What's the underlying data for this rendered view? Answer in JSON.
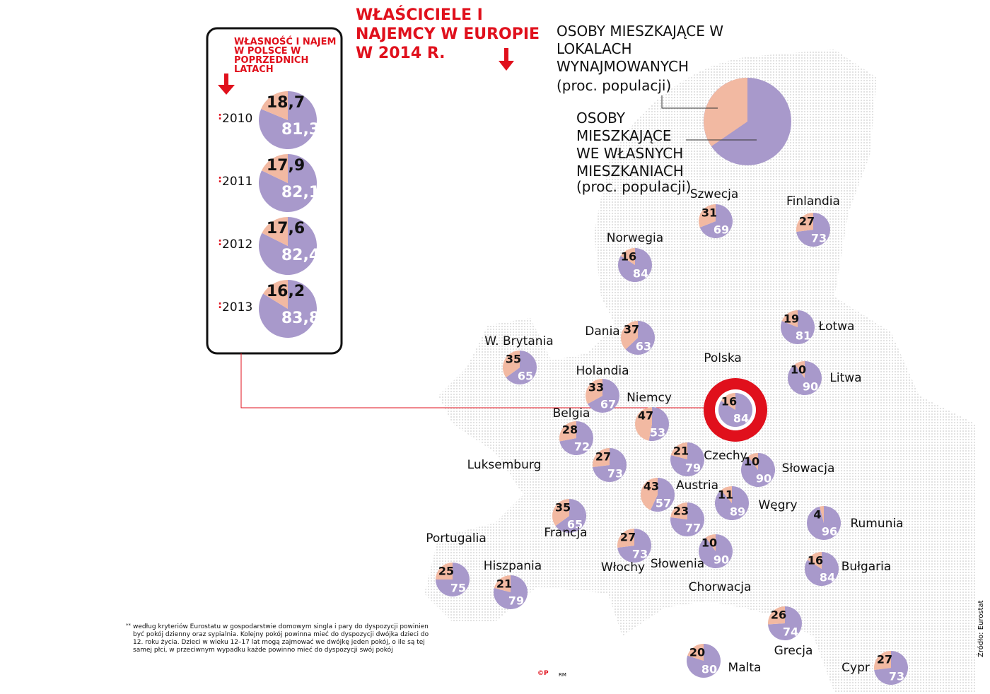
{
  "title": "WŁAŚCICIELE I NAJEMCY W EUROPIE W 2014 R.",
  "legend": {
    "rent_label": "OSOBY MIESZKAJĄCE W LOKALACH WYNAJMOWANYCH",
    "rent_unit": "(proc. populacji)",
    "own_label": "OSOBY MIESZKAJĄCE WE WŁASNYCH MIESZKANIACH",
    "own_unit": "(proc. populacji)",
    "rent_color": "#f2b9a2",
    "own_color": "#a899cb"
  },
  "poland_history": {
    "title": "WŁASNOŚĆ I NAJEM W POLSCE W POPRZEDNICH LATACH",
    "years": [
      {
        "year": "2010",
        "rent": {
          "value": 18.7,
          "label": "18,7"
        },
        "own": {
          "value": 81.3,
          "label": "81,3"
        }
      },
      {
        "year": "2011",
        "rent": {
          "value": 17.9,
          "label": "17,9"
        },
        "own": {
          "value": 82.1,
          "label": "82,1"
        }
      },
      {
        "year": "2012",
        "rent": {
          "value": 17.6,
          "label": "17,6"
        },
        "own": {
          "value": 82.4,
          "label": "82,4"
        }
      },
      {
        "year": "2013",
        "rent": {
          "value": 16.2,
          "label": "16,2"
        },
        "own": {
          "value": 83.8,
          "label": "83,8"
        }
      }
    ]
  },
  "countries": [
    {
      "name": "Szwecja",
      "rent": 31,
      "own": 69
    },
    {
      "name": "Finlandia",
      "rent": 27,
      "own": 73
    },
    {
      "name": "Norwegia",
      "rent": 16,
      "own": 84
    },
    {
      "name": "Łotwa",
      "rent": 19,
      "own": 81
    },
    {
      "name": "Litwa",
      "rent": 10,
      "own": 90
    },
    {
      "name": "Dania",
      "rent": 37,
      "own": 63
    },
    {
      "name": "W. Brytania",
      "rent": 35,
      "own": 65
    },
    {
      "name": "Holandia",
      "rent": 33,
      "own": 67
    },
    {
      "name": "Polska",
      "rent": 16,
      "own": 84
    },
    {
      "name": "Niemcy",
      "rent": 47,
      "own": 53
    },
    {
      "name": "Belgia",
      "rent": 28,
      "own": 72
    },
    {
      "name": "Luksemburg",
      "rent": 27,
      "own": 73
    },
    {
      "name": "Czechy",
      "rent": 21,
      "own": 79
    },
    {
      "name": "Słowacja",
      "rent": 10,
      "own": 90
    },
    {
      "name": "Austria",
      "rent": 43,
      "own": 57
    },
    {
      "name": "Węgry",
      "rent": 11,
      "own": 89
    },
    {
      "name": "Rumunia",
      "rent": 4,
      "own": 96
    },
    {
      "name": "Francja",
      "rent": 35,
      "own": 65
    },
    {
      "name": "Słowenia",
      "rent": 23,
      "own": 77
    },
    {
      "name": "Chorwacja",
      "rent": 10,
      "own": 90
    },
    {
      "name": "Włochy",
      "rent": 27,
      "own": 73
    },
    {
      "name": "Bułgaria",
      "rent": 16,
      "own": 84
    },
    {
      "name": "Portugalia",
      "rent": 25,
      "own": 75
    },
    {
      "name": "Hiszpania",
      "rent": 21,
      "own": 79
    },
    {
      "name": "Grecja",
      "rent": 26,
      "own": 74
    },
    {
      "name": "Malta",
      "rent": 20,
      "own": 80
    },
    {
      "name": "Cypr",
      "rent": 27,
      "own": 73
    }
  ],
  "footnote": {
    "marker": "**",
    "text": "według kryteriów Eurostatu w gospodarstwie domowym singla i pary do dyspozycji powinien być pokój dzienny oraz sypialnia. Kolejny pokój powinna mieć do dyspozycji dwójka dzieci do 12. roku życia. Dzieci w wieku 12–17 lat mogą zajmować we dwójkę jeden pokój, o ile są tej samej płci, w przeciwnym wypadku każde powinno mieć do dyspozycji swój pokój"
  },
  "source": "Źródło: Eurostat",
  "author": "RM"
}
